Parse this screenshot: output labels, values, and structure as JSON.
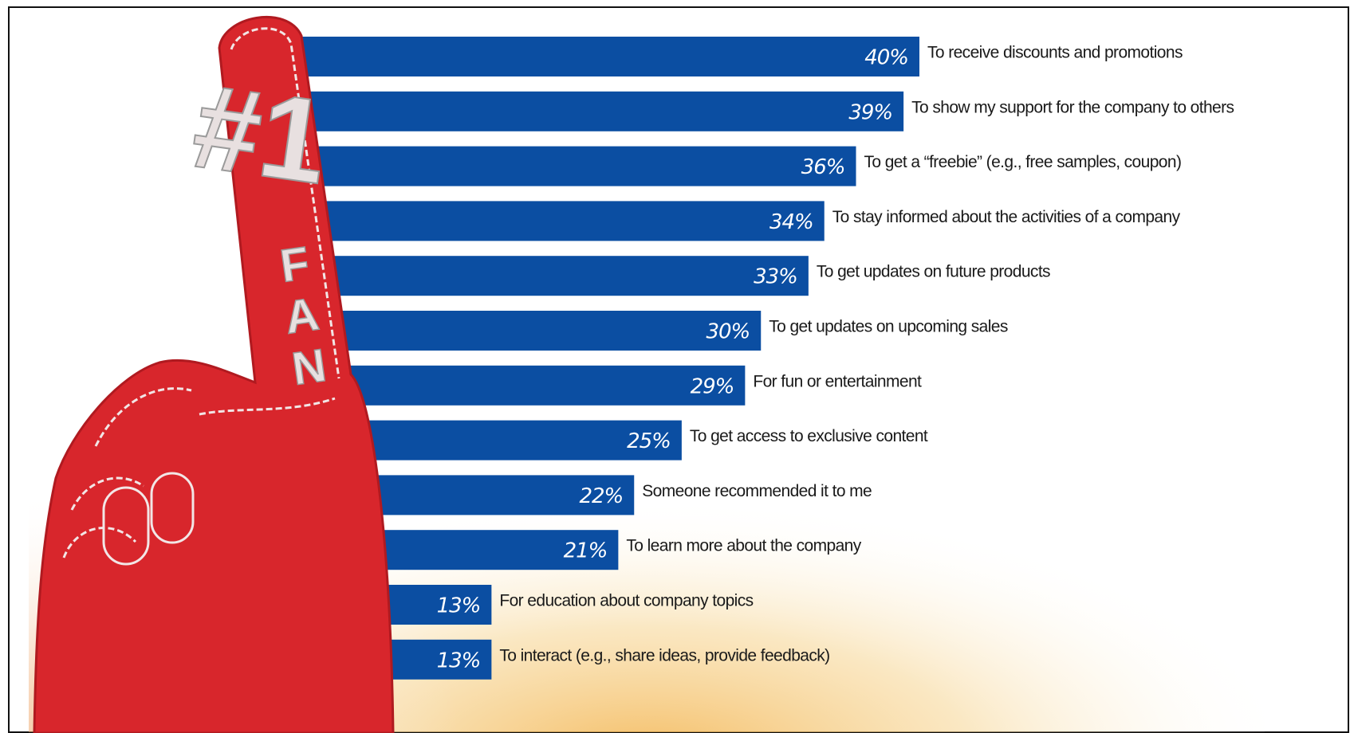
{
  "chart_data": {
    "type": "bar",
    "orientation": "horizontal",
    "categories": [
      "To receive discounts and promotions",
      "To show my support for the company to others",
      "To get a “freebie” (e.g., free samples, coupon)",
      "To stay informed about the  activities of a company",
      "To get updates on future products",
      "To get updates on upcoming sales",
      "For fun or entertainment",
      "To get access to exclusive content",
      "Someone recommended it to me",
      "To learn more about the company",
      "For education about company topics",
      "To interact (e.g., share ideas, provide feedback)"
    ],
    "values": [
      40,
      39,
      36,
      34,
      33,
      30,
      29,
      25,
      22,
      21,
      13,
      13
    ],
    "value_labels": [
      "40%",
      "39%",
      "36%",
      "34%",
      "33%",
      "30%",
      "29%",
      "25%",
      "22%",
      "21%",
      "13%",
      "13%"
    ],
    "color": "#0b4ea2",
    "xlim": [
      0,
      40
    ],
    "annotations": [
      "#1",
      "FAN"
    ]
  }
}
